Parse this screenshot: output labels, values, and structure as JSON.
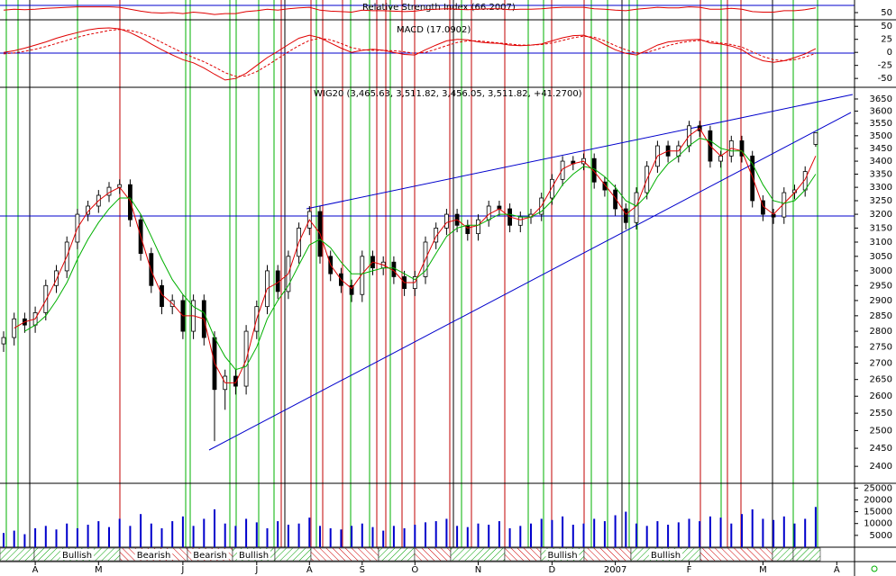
{
  "chart_data": [
    {
      "type": "line",
      "title": "Relative Strength Index (66.2007)",
      "ylim": [
        35,
        65
      ],
      "yticks": [
        50
      ],
      "series": [
        {
          "color": "#e00000",
          "values": [
            55,
            57,
            56,
            57,
            59,
            60,
            61,
            62,
            62,
            62,
            62,
            61,
            57,
            53,
            50,
            49,
            50,
            48,
            51,
            49,
            46,
            48,
            48,
            52,
            54,
            57,
            55,
            58,
            60,
            61,
            55,
            53,
            52,
            51,
            55,
            54,
            54,
            53,
            52,
            53,
            56,
            57,
            58,
            57,
            56,
            57,
            58,
            58,
            56,
            57,
            57,
            58,
            60,
            61,
            61,
            61,
            58,
            57,
            55,
            54,
            57,
            59,
            61,
            60,
            60,
            62,
            61,
            57,
            57,
            59,
            57,
            52,
            51,
            51,
            54,
            54,
            56,
            60,
            null,
            null
          ]
        }
      ]
    },
    {
      "type": "line",
      "title": "MACD (17.0902)",
      "ylim": [
        -67,
        59
      ],
      "yticks": [
        -50,
        -25,
        0,
        25,
        50
      ],
      "series": [
        {
          "color": "#e00000",
          "style": "solid",
          "values": [
            0,
            3,
            8,
            14,
            20,
            27,
            33,
            38,
            43,
            46,
            47,
            45,
            38,
            28,
            16,
            5,
            -5,
            -14,
            -20,
            -30,
            -42,
            -53,
            -50,
            -40,
            -25,
            -10,
            2,
            15,
            27,
            33,
            28,
            18,
            8,
            0,
            4,
            6,
            4,
            0,
            -4,
            -5,
            5,
            14,
            22,
            25,
            24,
            20,
            18,
            17,
            14,
            13,
            14,
            16,
            22,
            28,
            32,
            33,
            26,
            15,
            5,
            -2,
            -5,
            4,
            14,
            20,
            22,
            24,
            25,
            18,
            16,
            12,
            5,
            -8,
            -16,
            -19,
            -16,
            -10,
            -3,
            7,
            null,
            null
          ]
        },
        {
          "color": "#e00000",
          "style": "dashed",
          "values": [
            -3,
            -1,
            2,
            6,
            11,
            17,
            23,
            29,
            34,
            38,
            42,
            44,
            42,
            37,
            29,
            19,
            9,
            -1,
            -10,
            -18,
            -28,
            -39,
            -46,
            -45,
            -37,
            -25,
            -12,
            1,
            13,
            23,
            27,
            24,
            17,
            9,
            5,
            4,
            4,
            3,
            1,
            -2,
            0,
            6,
            13,
            19,
            22,
            22,
            20,
            18,
            16,
            14,
            14,
            15,
            18,
            23,
            28,
            31,
            29,
            22,
            13,
            5,
            -1,
            0,
            6,
            13,
            18,
            21,
            23,
            21,
            18,
            15,
            10,
            1,
            -8,
            -14,
            -16,
            -14,
            -9,
            -2,
            null,
            null
          ]
        }
      ]
    },
    {
      "type": "candlestick",
      "title": "WIG20 (3,465.63, 3,511.82, 3,456.05, 3,511.82, +41.2700)",
      "log_scale": true,
      "ylim": [
        2354,
        3699
      ],
      "yticks": [
        2400,
        2450,
        2500,
        2550,
        2600,
        2650,
        2700,
        2750,
        2800,
        2850,
        2900,
        2950,
        3000,
        3050,
        3100,
        3150,
        3200,
        3250,
        3300,
        3350,
        3400,
        3450,
        3500,
        3550,
        3600,
        3650
      ],
      "categories": [
        null,
        null,
        null,
        "A",
        null,
        null,
        null,
        null,
        null,
        "M",
        null,
        null,
        null,
        null,
        null,
        null,
        null,
        "J",
        null,
        null,
        null,
        null,
        null,
        null,
        "J",
        null,
        null,
        null,
        null,
        "A",
        null,
        null,
        null,
        null,
        "S",
        null,
        null,
        null,
        null,
        "O",
        null,
        null,
        null,
        null,
        null,
        "N",
        null,
        null,
        null,
        null,
        null,
        null,
        "D",
        null,
        null,
        null,
        null,
        null,
        "2007",
        null,
        null,
        null,
        null,
        null,
        null,
        "F",
        null,
        null,
        null,
        null,
        null,
        null,
        "M",
        null,
        null,
        null,
        null,
        null,
        null,
        "A"
      ],
      "color": "#000000",
      "open": [
        2760,
        2780,
        2840,
        2820,
        2860,
        2950,
        3000,
        3100,
        3200,
        3230,
        3270,
        3300,
        3310,
        3180,
        3060,
        2950,
        2880,
        2900,
        2800,
        2900,
        2780,
        2620,
        2660,
        2630,
        2800,
        2880,
        3000,
        2930,
        3050,
        3150,
        3210,
        3050,
        2990,
        2950,
        2920,
        3050,
        3010,
        3030,
        2980,
        2940,
        2980,
        3100,
        3150,
        3200,
        3160,
        3130,
        3180,
        3230,
        3220,
        3160,
        3190,
        3200,
        3260,
        3330,
        3400,
        3390,
        3410,
        3320,
        3290,
        3220,
        3170,
        3280,
        3380,
        3460,
        3420,
        3460,
        3540,
        3520,
        3400,
        3420,
        3480,
        3420,
        3250,
        3200,
        3190,
        3280,
        3290,
        3465.63,
        null,
        null
      ],
      "high": [
        2800,
        2860,
        2860,
        2880,
        2970,
        3020,
        3120,
        3220,
        3250,
        3290,
        3320,
        3330,
        3330,
        3200,
        3080,
        2970,
        2920,
        2920,
        2920,
        2920,
        2800,
        2680,
        2680,
        2820,
        2900,
        3020,
        3020,
        3070,
        3170,
        3230,
        3230,
        3070,
        3010,
        2970,
        3070,
        3070,
        3050,
        3050,
        3000,
        3000,
        3120,
        3170,
        3220,
        3220,
        3180,
        3200,
        3250,
        3250,
        3240,
        3210,
        3220,
        3280,
        3350,
        3420,
        3420,
        3430,
        3430,
        3340,
        3310,
        3240,
        3300,
        3400,
        3480,
        3480,
        3480,
        3560,
        3560,
        3540,
        3440,
        3500,
        3500,
        3440,
        3270,
        3220,
        3300,
        3310,
        3380,
        3511.82,
        null,
        null
      ],
      "low": [
        2735,
        2755,
        2795,
        2795,
        2835,
        2925,
        2975,
        3075,
        3175,
        3205,
        3245,
        3275,
        3155,
        3035,
        2925,
        2855,
        2855,
        2775,
        2775,
        2755,
        2470,
        2560,
        2605,
        2605,
        2775,
        2855,
        2905,
        2905,
        3025,
        3125,
        3025,
        2965,
        2925,
        2895,
        2895,
        2985,
        2985,
        2955,
        2915,
        2915,
        2955,
        3075,
        3125,
        3135,
        3105,
        3105,
        3155,
        3195,
        3135,
        3135,
        3165,
        3175,
        3235,
        3305,
        3365,
        3365,
        3295,
        3265,
        3195,
        3145,
        3145,
        3255,
        3355,
        3395,
        3395,
        3435,
        3495,
        3375,
        3375,
        3395,
        3395,
        3225,
        3175,
        3165,
        3165,
        3255,
        3265,
        3456.05,
        null,
        null
      ],
      "close": [
        2780,
        2840,
        2820,
        2860,
        2950,
        3000,
        3100,
        3200,
        3230,
        3270,
        3300,
        3310,
        3180,
        3060,
        2950,
        2880,
        2900,
        2800,
        2900,
        2780,
        2620,
        2660,
        2630,
        2800,
        2880,
        3000,
        2930,
        3050,
        3150,
        3210,
        3050,
        2990,
        2950,
        2920,
        3050,
        3010,
        3030,
        2980,
        2940,
        2980,
        3100,
        3150,
        3200,
        3160,
        3130,
        3180,
        3230,
        3220,
        3160,
        3190,
        3200,
        3260,
        3330,
        3400,
        3390,
        3410,
        3320,
        3290,
        3220,
        3170,
        3280,
        3380,
        3460,
        3420,
        3460,
        3540,
        3520,
        3400,
        3420,
        3480,
        3420,
        3250,
        3200,
        3190,
        3280,
        3290,
        3360,
        3511.82,
        null,
        null
      ],
      "overlays": [
        {
          "color": "#e00000",
          "values": [
            null,
            2810,
            2830,
            2840,
            2900,
            2970,
            3050,
            3150,
            3210,
            3250,
            3280,
            3300,
            3250,
            3120,
            3000,
            2920,
            2890,
            2850,
            2850,
            2840,
            2700,
            2640,
            2640,
            2710,
            2840,
            2940,
            2960,
            2990,
            3100,
            3180,
            3130,
            3020,
            2970,
            2940,
            2990,
            3030,
            3020,
            3000,
            2960,
            2960,
            3040,
            3120,
            3170,
            3180,
            3150,
            3160,
            3200,
            3220,
            3190,
            3180,
            3190,
            3230,
            3300,
            3370,
            3390,
            3400,
            3360,
            3310,
            3260,
            3200,
            3230,
            3330,
            3420,
            3440,
            3440,
            3500,
            3530,
            3460,
            3420,
            3450,
            3440,
            3340,
            3230,
            3200,
            3240,
            3280,
            3330,
            3420,
            null,
            null
          ]
        },
        {
          "color": "#00b000",
          "values": [
            null,
            null,
            2800,
            2820,
            2850,
            2900,
            2960,
            3040,
            3110,
            3170,
            3220,
            3260,
            3260,
            3200,
            3120,
            3040,
            2970,
            2920,
            2880,
            2860,
            2780,
            2720,
            2680,
            2690,
            2750,
            2840,
            2900,
            2950,
            3020,
            3090,
            3110,
            3080,
            3030,
            2990,
            2990,
            3000,
            3010,
            3010,
            2990,
            2970,
            3000,
            3060,
            3120,
            3150,
            3160,
            3160,
            3180,
            3200,
            3200,
            3190,
            3190,
            3210,
            3250,
            3310,
            3350,
            3380,
            3370,
            3340,
            3300,
            3250,
            3230,
            3270,
            3340,
            3390,
            3420,
            3460,
            3490,
            3480,
            3450,
            3440,
            3440,
            3390,
            3310,
            3250,
            3240,
            3250,
            3290,
            3350,
            null,
            null
          ]
        }
      ],
      "signal_labels": [
        "Bullish",
        "Bearish",
        "Bearish",
        "Bullish",
        "Bullish",
        "Bullish"
      ]
    },
    {
      "type": "bar",
      "ylim": [
        0,
        27000
      ],
      "yticks": [
        5000,
        10000,
        15000,
        20000,
        25000
      ],
      "color": "#0000cc",
      "values": [
        6000,
        7000,
        5500,
        8000,
        9000,
        7500,
        10000,
        8000,
        9500,
        11000,
        8500,
        12000,
        9000,
        14000,
        10000,
        8000,
        11000,
        13000,
        9000,
        12000,
        16000,
        10000,
        9000,
        12000,
        10500,
        8000,
        11000,
        9500,
        10000,
        12500,
        9000,
        8000,
        7500,
        9000,
        10000,
        8500,
        7000,
        9000,
        8000,
        9500,
        10500,
        11000,
        12000,
        9000,
        8500,
        10000,
        9500,
        11000,
        8000,
        9000,
        10000,
        12000,
        11500,
        13000,
        9500,
        10000,
        12000,
        11000,
        13500,
        15000,
        10000,
        9000,
        11000,
        9500,
        10500,
        12000,
        11000,
        13000,
        12500,
        10000,
        14000,
        16000,
        12000,
        11500,
        13000,
        10000,
        12000,
        17000,
        null,
        null
      ]
    }
  ]
}
